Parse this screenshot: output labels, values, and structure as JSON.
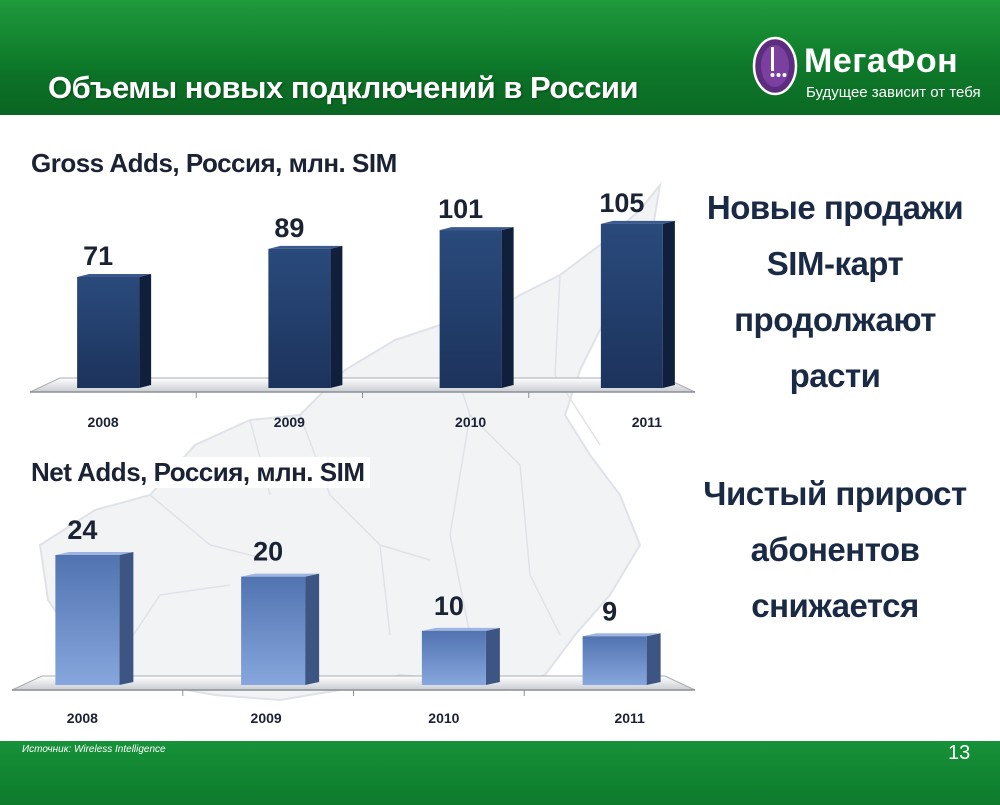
{
  "slide": {
    "title": "Объемы новых подключений в России",
    "page_number": "13",
    "source": "Источник: Wireless Intelligence"
  },
  "logo": {
    "name": "МегаФон",
    "tagline": "Будущее зависит от тебя"
  },
  "side_text": {
    "gross": [
      "Новые продажи",
      "SIM-карт",
      "продолжают расти"
    ],
    "net": [
      "Чистый прирост",
      "абонентов",
      "снижается"
    ]
  },
  "colors": {
    "brand_green": "#0e7a2a",
    "gross_bar": "#1e3a66",
    "net_bar": "#6f93cf"
  },
  "chart_data": [
    {
      "type": "bar",
      "title": "Gross Adds, Россия, млн. SIM",
      "categories": [
        "2008",
        "2009",
        "2010",
        "2011"
      ],
      "values": [
        71,
        89,
        101,
        105
      ],
      "ylim": [
        0,
        110
      ],
      "xlabel": "",
      "ylabel": "",
      "grid": false
    },
    {
      "type": "bar",
      "title": "Net Adds, Россия, млн. SIM",
      "categories": [
        "2008",
        "2009",
        "2010",
        "2011"
      ],
      "values": [
        24,
        20,
        10,
        9
      ],
      "ylim": [
        0,
        24
      ],
      "xlabel": "",
      "ylabel": "",
      "grid": false
    }
  ]
}
